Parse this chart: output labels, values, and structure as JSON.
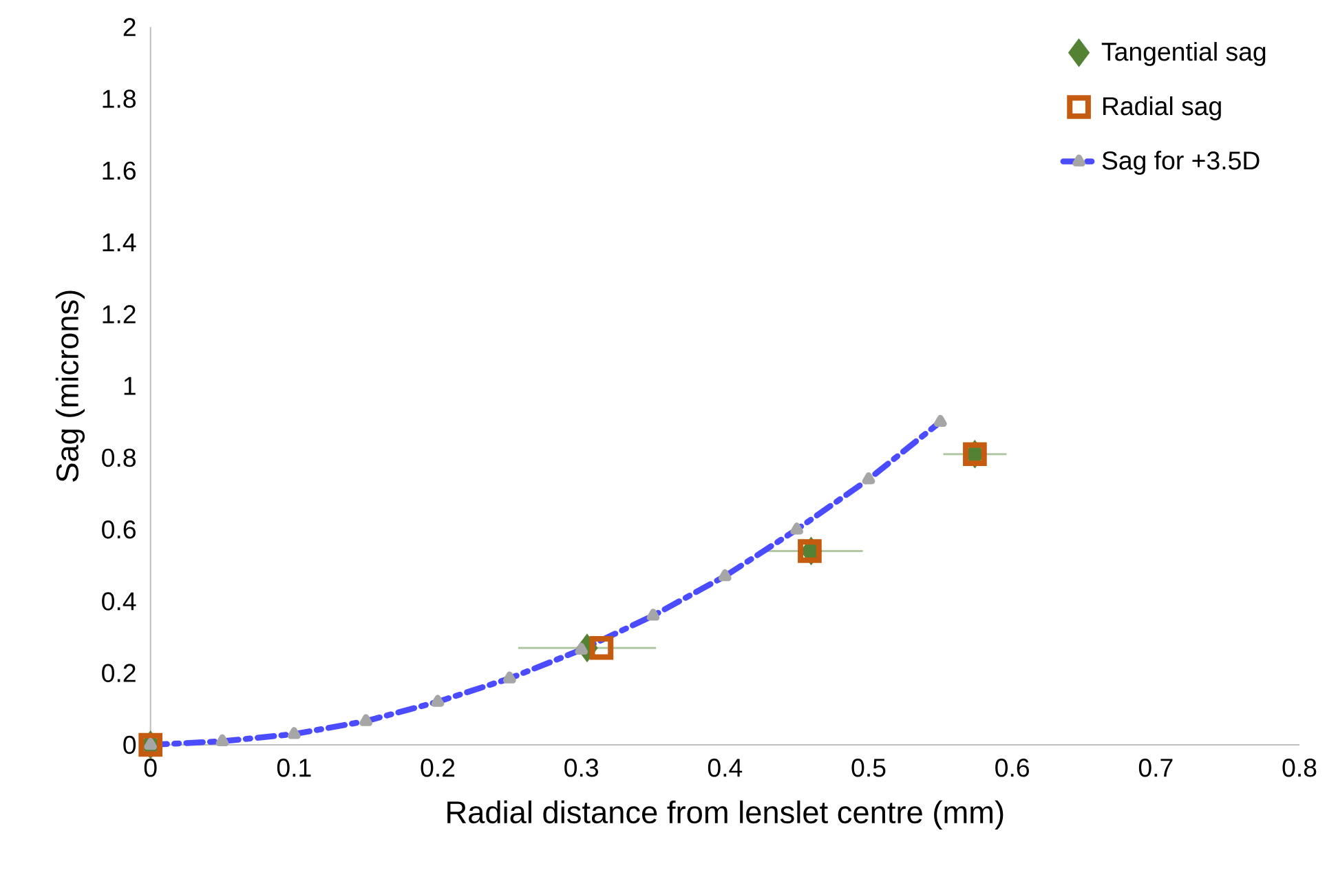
{
  "chart_data": {
    "type": "scatter",
    "xlabel": "Radial distance from lenslet centre (mm)",
    "ylabel": "Sag (microns)",
    "xlim": [
      0,
      0.8
    ],
    "ylim": [
      0,
      2
    ],
    "xticks": [
      0,
      0.1,
      0.2,
      0.3,
      0.4,
      0.5,
      0.6,
      0.7,
      0.8
    ],
    "yticks": [
      0,
      0.2,
      0.4,
      0.6,
      0.8,
      1,
      1.2,
      1.4,
      1.6,
      1.8,
      2
    ],
    "grid": false,
    "legend": "top right",
    "series": [
      {
        "name": "Tangential sag",
        "color": "#548235",
        "marker": "diamond",
        "x": [
          0,
          0.304,
          0.46,
          0.574
        ],
        "values": [
          0,
          0.27,
          0.54,
          0.81
        ],
        "xerrors": [
          null,
          0.048,
          0.036,
          0.022
        ]
      },
      {
        "name": "Radial sag",
        "color": "#c55a11",
        "marker": "square",
        "x": [
          0,
          0.314,
          0.459,
          0.574
        ],
        "values": [
          0,
          0.27,
          0.54,
          0.81
        ]
      },
      {
        "name": "Sag for +3.5D",
        "type": "line",
        "color": "#4b4bff",
        "marker": "triangle",
        "line_style": "dashed",
        "x": [
          0,
          0.05,
          0.1,
          0.15,
          0.2,
          0.25,
          0.3,
          0.35,
          0.4,
          0.45,
          0.5,
          0.55
        ],
        "values": [
          0,
          0.01,
          0.03,
          0.066,
          0.12,
          0.185,
          0.265,
          0.36,
          0.47,
          0.6,
          0.74,
          0.9
        ]
      }
    ]
  }
}
